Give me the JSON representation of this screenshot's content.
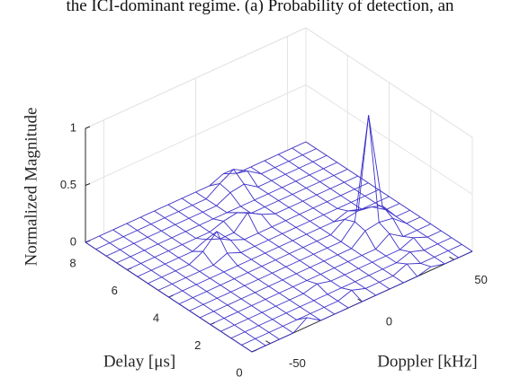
{
  "caption": "the ICI-dominant regime. (a) Probability of detection, an",
  "chart_data": {
    "type": "mesh",
    "xlabel": "Delay [μs]",
    "ylabel": "Doppler [kHz]",
    "zlabel": "Normalized Magnitude",
    "color": "#3b2fc9",
    "grid": true,
    "xlim": [
      0,
      8
    ],
    "ylim": [
      -60,
      60
    ],
    "zlim": [
      0,
      1
    ],
    "xticks": [
      0,
      2,
      4,
      6,
      8
    ],
    "yticks": [
      -50,
      0,
      50
    ],
    "zticks": [
      0,
      0.5,
      1
    ],
    "x": [
      0,
      0.5,
      1,
      1.5,
      2,
      2.5,
      3,
      3.5,
      4,
      4.5,
      5,
      5.5,
      6,
      6.5,
      7,
      7.5,
      8
    ],
    "y": [
      -60,
      -52.5,
      -45,
      -37.5,
      -30,
      -22.5,
      -15,
      -7.5,
      0,
      7.5,
      15,
      22.5,
      30,
      37.5,
      45,
      52.5,
      60
    ],
    "z": [
      [
        0,
        0,
        0,
        0,
        0.08,
        0,
        0,
        0,
        0,
        0,
        0,
        0,
        0,
        0.03,
        0,
        0,
        0
      ],
      [
        0,
        0,
        0,
        0,
        0,
        0,
        0,
        0,
        0.04,
        0,
        0,
        0,
        0.05,
        0,
        0,
        0,
        0
      ],
      [
        0,
        0,
        0,
        0,
        0,
        0,
        0,
        0,
        0,
        0,
        0,
        0,
        0,
        0.04,
        0,
        0,
        0
      ],
      [
        0,
        0,
        0,
        0,
        0,
        0,
        0,
        0.03,
        0,
        0,
        0,
        0,
        0,
        0,
        0.05,
        0,
        0
      ],
      [
        0,
        0,
        0,
        0,
        0,
        0,
        0,
        0,
        0,
        0,
        0,
        0,
        0,
        0.08,
        0,
        0,
        0
      ],
      [
        0,
        0,
        0,
        0,
        0,
        0,
        0,
        0,
        0,
        0,
        0,
        0,
        0.1,
        0.12,
        0.1,
        0,
        0
      ],
      [
        0,
        0,
        0,
        0,
        0,
        0,
        0,
        0,
        0,
        0,
        0,
        0,
        0.12,
        1,
        0.15,
        0,
        0
      ],
      [
        0,
        0,
        0,
        0,
        0,
        0,
        0,
        0,
        0,
        0,
        0,
        0,
        0.08,
        0.1,
        0.08,
        0,
        0
      ],
      [
        0,
        0,
        0,
        0,
        0,
        0,
        0,
        0,
        0,
        0,
        0,
        0,
        0,
        0.04,
        0,
        0,
        0
      ],
      [
        0,
        0,
        0,
        0,
        0,
        0.05,
        0,
        0,
        0,
        0,
        0,
        0,
        0,
        0,
        0,
        0,
        0
      ],
      [
        0,
        0,
        0,
        0,
        0.06,
        0.18,
        0.05,
        0,
        0,
        0,
        0,
        0,
        0,
        0,
        0,
        0,
        0
      ],
      [
        0,
        0,
        0,
        0,
        0,
        0.05,
        0,
        0,
        0.12,
        0.05,
        0,
        0,
        0,
        0,
        0,
        0,
        0
      ],
      [
        0,
        0,
        0,
        0,
        0,
        0,
        0,
        0.04,
        0.06,
        0,
        0,
        0,
        0,
        0,
        0,
        0,
        0
      ],
      [
        0,
        0,
        0,
        0,
        0,
        0,
        0,
        0,
        0,
        0,
        0,
        0,
        0,
        0,
        0,
        0,
        0
      ],
      [
        0,
        0,
        0,
        0,
        0,
        0,
        0,
        0,
        0,
        0.06,
        0.08,
        0,
        0,
        0,
        0,
        0,
        0
      ],
      [
        0,
        0,
        0,
        0,
        0,
        0,
        0,
        0,
        0,
        0.08,
        0.15,
        0.08,
        0,
        0,
        0,
        0,
        0
      ],
      [
        0,
        0,
        0,
        0,
        0,
        0,
        0,
        0,
        0,
        0,
        0.05,
        0,
        0,
        0,
        0,
        0,
        0
      ]
    ]
  }
}
